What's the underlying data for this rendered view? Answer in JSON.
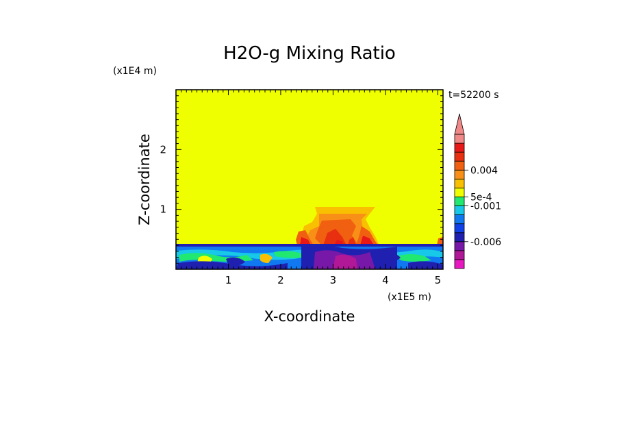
{
  "chart_data": {
    "type": "heatmap",
    "title": "H2O-g Mixing Ratio",
    "xlabel": "X-coordinate",
    "ylabel": "Z-coordinate",
    "x_multiplier": "(x1E5 m)",
    "y_multiplier": "(x1E4 m)",
    "time_label": "t=52200 s",
    "x_ticks": [
      "1",
      "2",
      "3",
      "4",
      "5"
    ],
    "y_ticks": [
      "1",
      "2"
    ],
    "xlim": [
      0,
      5.1
    ],
    "ylim": [
      0,
      3.0
    ],
    "colorbar": {
      "labels": [
        {
          "text": "0.004",
          "value": 0.004
        },
        {
          "text": "5e-4",
          "value": 0.0005
        },
        {
          "text": "-0.001",
          "value": -0.001
        },
        {
          "text": "-0.006",
          "value": -0.006
        }
      ],
      "colors": [
        "#e818c0",
        "#b01898",
        "#7818a8",
        "#2020b0",
        "#1040e8",
        "#1078f0",
        "#18c8e8",
        "#20e870",
        "#f0ff00",
        "#f8c000",
        "#f89018",
        "#f06010",
        "#e83010",
        "#e81818",
        "#f08888"
      ],
      "extend": "max"
    }
  }
}
